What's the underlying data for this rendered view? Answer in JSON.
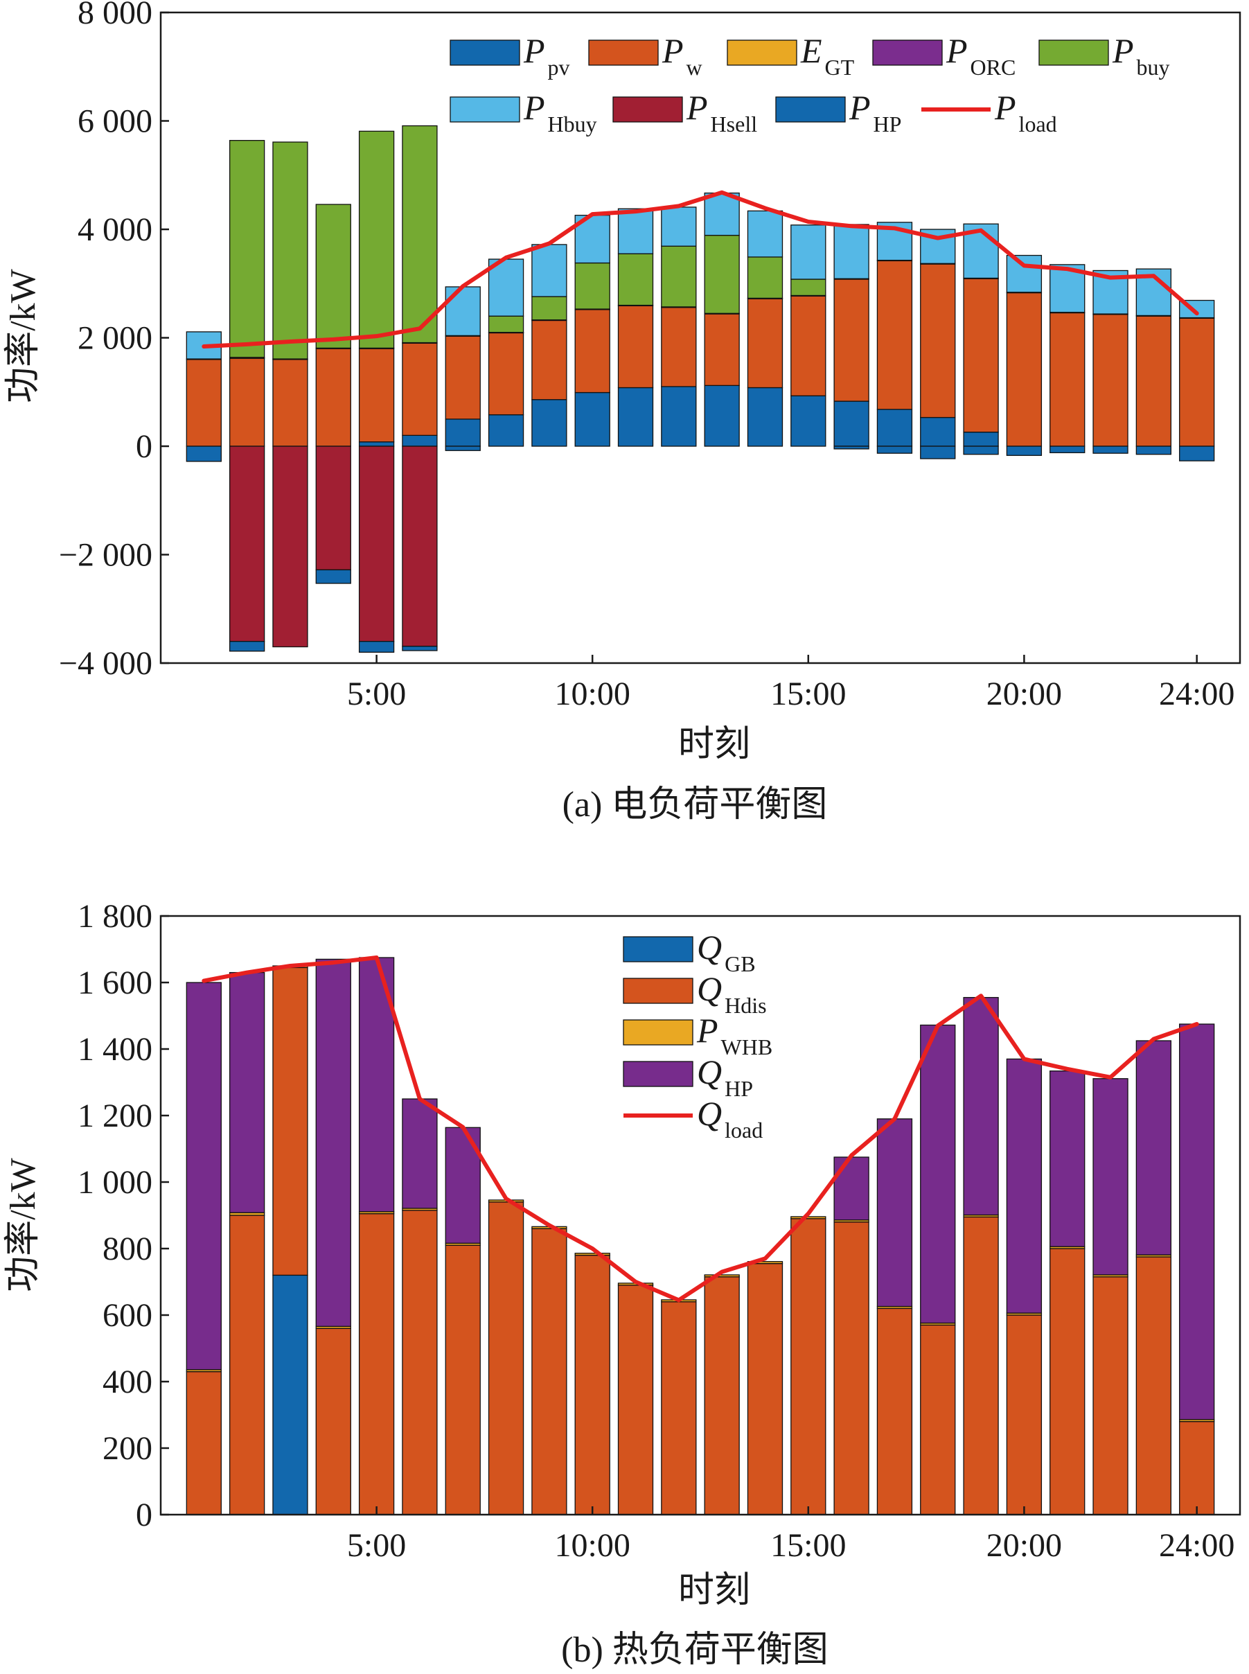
{
  "colors": {
    "pv": "#1268ad",
    "w": "#d4541e",
    "gt": "#e9a823",
    "orc": "#7b2d8e",
    "buy": "#75aa32",
    "hbuy": "#55b8e6",
    "hsell": "#a11f33",
    "hp": "#1268ad",
    "load": "#e8211f",
    "gb": "#1268ad",
    "hdis": "#d4541e",
    "whb": "#e9a823",
    "qhp": "#772c8c"
  },
  "chart_data": [
    {
      "type": "bar",
      "subtype": "stacked-bar-with-line",
      "caption": "(a) 电负荷平衡图",
      "xlabel": "时刻",
      "ylabel": "功率/kW",
      "ylim": [
        -4000,
        8000
      ],
      "yticks": [
        -4000,
        -2000,
        0,
        2000,
        4000,
        6000,
        8000
      ],
      "ytick_labels": [
        "−4 000",
        "−2 000",
        "0",
        "2 000",
        "4 000",
        "6 000",
        "8 000"
      ],
      "xlim": [
        0,
        25
      ],
      "xticks": [
        5,
        10,
        15,
        20,
        24
      ],
      "xtick_labels": [
        "5:00",
        "10:00",
        "15:00",
        "20:00",
        "24:00"
      ],
      "hours": [
        1,
        2,
        3,
        4,
        5,
        6,
        7,
        8,
        9,
        10,
        11,
        12,
        13,
        14,
        15,
        16,
        17,
        18,
        19,
        20,
        21,
        22,
        23,
        24
      ],
      "positive_order": [
        "P_pv",
        "P_w",
        "E_GT",
        "P_ORC",
        "P_buy",
        "P_Hbuy"
      ],
      "negative_order": [
        "P_Hsell",
        "P_HP"
      ],
      "series": [
        {
          "key": "P_pv",
          "legend_main": "P",
          "legend_sub": "pv",
          "color_key": "pv",
          "values": [
            0,
            0,
            0,
            0,
            80,
            200,
            500,
            580,
            860,
            990,
            1080,
            1100,
            1120,
            1080,
            930,
            830,
            680,
            530,
            260,
            0,
            0,
            0,
            0,
            0
          ]
        },
        {
          "key": "P_w",
          "legend_main": "P",
          "legend_sub": "w",
          "color_key": "w",
          "values": [
            1600,
            1620,
            1600,
            1800,
            1720,
            1700,
            1530,
            1510,
            1460,
            1530,
            1510,
            1460,
            1320,
            1640,
            1840,
            2250,
            2740,
            2830,
            2830,
            2830,
            2460,
            2430,
            2400,
            2360
          ]
        },
        {
          "key": "E_GT",
          "legend_main": "E",
          "legend_sub": "GT",
          "color_key": "gt",
          "values": [
            10,
            20,
            10,
            10,
            10,
            10,
            10,
            10,
            10,
            10,
            10,
            10,
            10,
            10,
            10,
            10,
            10,
            10,
            10,
            10,
            10,
            10,
            10,
            10
          ]
        },
        {
          "key": "P_ORC",
          "legend_main": "P",
          "legend_sub": "ORC",
          "color_key": "orc",
          "values": [
            0,
            0,
            0,
            0,
            0,
            0,
            0,
            0,
            0,
            0,
            0,
            0,
            0,
            0,
            0,
            0,
            0,
            0,
            0,
            0,
            0,
            0,
            0,
            0
          ]
        },
        {
          "key": "P_buy",
          "legend_main": "P",
          "legend_sub": "buy",
          "color_key": "buy",
          "values": [
            0,
            4000,
            4000,
            2650,
            4000,
            4000,
            0,
            300,
            430,
            850,
            950,
            1120,
            1440,
            760,
            300,
            0,
            0,
            0,
            0,
            0,
            0,
            0,
            0,
            0
          ]
        },
        {
          "key": "P_Hbuy",
          "legend_main": "P",
          "legend_sub": "Hbuy",
          "color_key": "hbuy",
          "values": [
            500,
            0,
            0,
            0,
            0,
            0,
            900,
            1050,
            960,
            880,
            830,
            720,
            780,
            850,
            1000,
            1000,
            700,
            630,
            1000,
            680,
            880,
            800,
            860,
            320
          ]
        },
        {
          "key": "P_Hsell",
          "legend_main": "P",
          "legend_sub": "Hsell",
          "color_key": "hsell",
          "values": [
            0,
            -3600,
            -3700,
            -2280,
            -3600,
            -3690,
            0,
            0,
            0,
            0,
            0,
            0,
            0,
            0,
            0,
            0,
            0,
            0,
            0,
            0,
            0,
            0,
            0,
            0
          ]
        },
        {
          "key": "P_HP",
          "legend_main": "P",
          "legend_sub": "HP",
          "color_key": "hp",
          "values": [
            -280,
            -180,
            0,
            -250,
            -200,
            -80,
            -80,
            0,
            0,
            0,
            0,
            0,
            0,
            0,
            0,
            -50,
            -130,
            -230,
            -150,
            -170,
            -120,
            -130,
            -150,
            -270
          ]
        }
      ],
      "line": {
        "key": "P_load",
        "legend_main": "P",
        "legend_sub": "load",
        "color_key": "load",
        "values": [
          1840,
          1880,
          1930,
          1970,
          2030,
          2170,
          2950,
          3480,
          3740,
          4280,
          4330,
          4430,
          4680,
          4390,
          4140,
          4060,
          4020,
          3840,
          3980,
          3330,
          3270,
          3110,
          3140,
          2450
        ]
      }
    },
    {
      "type": "bar",
      "subtype": "stacked-bar-with-line",
      "caption": "(b) 热负荷平衡图",
      "xlabel": "时刻",
      "ylabel": "功率/kW",
      "ylim": [
        0,
        1800
      ],
      "yticks": [
        0,
        200,
        400,
        600,
        800,
        1000,
        1200,
        1400,
        1600,
        1800
      ],
      "ytick_labels": [
        "0",
        "200",
        "400",
        "600",
        "800",
        "1 000",
        "1 200",
        "1 400",
        "1 600",
        "1 800"
      ],
      "xlim": [
        0,
        25
      ],
      "xticks": [
        5,
        10,
        15,
        20,
        24
      ],
      "xtick_labels": [
        "5:00",
        "10:00",
        "15:00",
        "20:00",
        "24:00"
      ],
      "hours": [
        1,
        2,
        3,
        4,
        5,
        6,
        7,
        8,
        9,
        10,
        11,
        12,
        13,
        14,
        15,
        16,
        17,
        18,
        19,
        20,
        21,
        22,
        23,
        24
      ],
      "positive_order": [
        "Q_GB",
        "Q_Hdis",
        "P_WHB",
        "Q_HP"
      ],
      "negative_order": [],
      "series": [
        {
          "key": "Q_GB",
          "legend_main": "Q",
          "legend_sub": "GB",
          "color_key": "gb",
          "values": [
            0,
            0,
            720,
            0,
            0,
            0,
            0,
            0,
            0,
            0,
            0,
            0,
            0,
            0,
            0,
            0,
            0,
            0,
            0,
            0,
            0,
            0,
            0,
            0
          ]
        },
        {
          "key": "Q_Hdis",
          "legend_main": "Q",
          "legend_sub": "Hdis",
          "color_key": "hdis",
          "values": [
            430,
            900,
            925,
            560,
            905,
            915,
            810,
            940,
            860,
            780,
            690,
            640,
            715,
            755,
            890,
            880,
            620,
            570,
            895,
            600,
            800,
            715,
            775,
            280
          ]
        },
        {
          "key": "P_WHB",
          "legend_main": "P",
          "legend_sub": "WHB",
          "color_key": "whb",
          "values": [
            6,
            8,
            5,
            6,
            6,
            6,
            6,
            6,
            6,
            6,
            6,
            6,
            6,
            6,
            6,
            6,
            6,
            6,
            6,
            6,
            6,
            6,
            6,
            6
          ]
        },
        {
          "key": "Q_HP",
          "legend_main": "Q",
          "legend_sub": "HP",
          "color_key": "qhp",
          "values": [
            1164,
            722,
            0,
            1104,
            764,
            329,
            348,
            0,
            0,
            0,
            0,
            0,
            0,
            0,
            0,
            189,
            564,
            896,
            654,
            764,
            528,
            590,
            644,
            1189
          ]
        }
      ],
      "line": {
        "key": "Q_load",
        "legend_main": "Q",
        "legend_sub": "load",
        "color_key": "load",
        "values": [
          1605,
          1630,
          1650,
          1660,
          1675,
          1250,
          1165,
          950,
          870,
          800,
          700,
          645,
          730,
          770,
          905,
          1080,
          1190,
          1470,
          1560,
          1370,
          1340,
          1315,
          1430,
          1475
        ]
      }
    }
  ]
}
